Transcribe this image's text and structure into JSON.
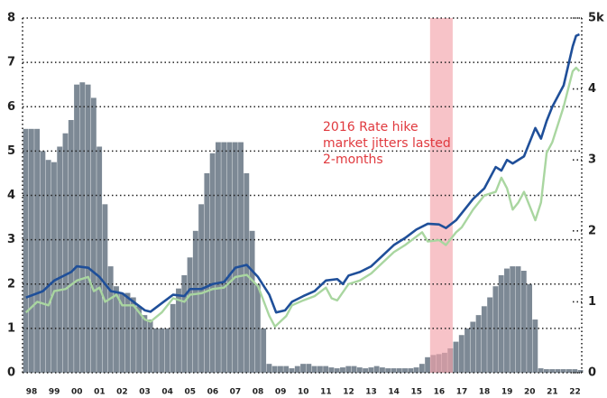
{
  "chart_data": {
    "type": "combo",
    "annotation": [
      "2016 Rate hike",
      "market jitters lasted",
      "2-months"
    ],
    "annotation_color": "#e0393e",
    "xlim": [
      1997.6,
      2022.3
    ],
    "xticks": [
      {
        "value": 1998,
        "label": "98"
      },
      {
        "value": 1999,
        "label": "99"
      },
      {
        "value": 2000,
        "label": "00"
      },
      {
        "value": 2001,
        "label": "01"
      },
      {
        "value": 2002,
        "label": "02"
      },
      {
        "value": 2003,
        "label": "03"
      },
      {
        "value": 2004,
        "label": "04"
      },
      {
        "value": 2005,
        "label": "05"
      },
      {
        "value": 2006,
        "label": "06"
      },
      {
        "value": 2007,
        "label": "07"
      },
      {
        "value": 2008,
        "label": "08"
      },
      {
        "value": 2009,
        "label": "09"
      },
      {
        "value": 2010,
        "label": "10"
      },
      {
        "value": 2011,
        "label": "11"
      },
      {
        "value": 2012,
        "label": "12"
      },
      {
        "value": 2013,
        "label": "13"
      },
      {
        "value": 2014,
        "label": "14"
      },
      {
        "value": 2015,
        "label": "15"
      },
      {
        "value": 2016,
        "label": "16"
      },
      {
        "value": 2017,
        "label": "17"
      },
      {
        "value": 2018,
        "label": "18"
      },
      {
        "value": 2019,
        "label": "19"
      },
      {
        "value": 2020,
        "label": "20"
      },
      {
        "value": 2021,
        "label": "21"
      },
      {
        "value": 2022,
        "label": "22"
      }
    ],
    "ylim": [
      0,
      8
    ],
    "yticks": [
      0,
      1,
      2,
      3,
      4,
      5,
      6,
      7,
      8
    ],
    "y2lim": [
      0,
      5
    ],
    "y2ticks": [
      0,
      1,
      2,
      3,
      4,
      {
        "value": 5,
        "label": "5k"
      }
    ],
    "grid": true,
    "highlight": {
      "x": [
        2015.6,
        2016.6
      ],
      "color": "#f2a3aa"
    },
    "bars": {
      "color": "#7d8995",
      "width": 0.25,
      "x": [
        1997.75,
        1998,
        1998.25,
        1998.5,
        1998.75,
        1999,
        1999.25,
        1999.5,
        1999.75,
        2000,
        2000.25,
        2000.5,
        2000.75,
        2001,
        2001.25,
        2001.5,
        2001.75,
        2002,
        2002.25,
        2002.5,
        2002.75,
        2003,
        2003.25,
        2003.5,
        2003.75,
        2004,
        2004.25,
        2004.5,
        2004.75,
        2005,
        2005.25,
        2005.5,
        2005.75,
        2006,
        2006.25,
        2006.5,
        2006.75,
        2007,
        2007.25,
        2007.5,
        2007.75,
        2008,
        2008.25,
        2008.5,
        2008.75,
        2009,
        2009.25,
        2009.5,
        2009.75,
        2010,
        2010.25,
        2010.5,
        2010.75,
        2011,
        2011.25,
        2011.5,
        2011.75,
        2012,
        2012.25,
        2012.5,
        2012.75,
        2013,
        2013.25,
        2013.5,
        2013.75,
        2014,
        2014.25,
        2014.5,
        2014.75,
        2015,
        2015.25,
        2015.5,
        2015.75,
        2016,
        2016.25,
        2016.5,
        2016.75,
        2017,
        2017.25,
        2017.5,
        2017.75,
        2018,
        2018.25,
        2018.5,
        2018.75,
        2019,
        2019.25,
        2019.5,
        2019.75,
        2020,
        2020.25,
        2020.5,
        2020.75,
        2021,
        2021.25,
        2021.5,
        2021.75,
        2022,
        2022.25
      ],
      "values": [
        5.5,
        5.5,
        5.5,
        5.0,
        4.8,
        4.75,
        5.1,
        5.4,
        5.7,
        6.5,
        6.55,
        6.5,
        6.2,
        5.1,
        3.8,
        2.4,
        1.95,
        1.8,
        1.8,
        1.7,
        1.5,
        1.3,
        1.2,
        1.0,
        1.0,
        1.0,
        1.55,
        1.9,
        2.2,
        2.6,
        3.2,
        3.8,
        4.5,
        4.95,
        5.2,
        5.2,
        5.2,
        5.2,
        5.2,
        4.5,
        3.2,
        2.0,
        1.0,
        0.2,
        0.15,
        0.15,
        0.15,
        0.1,
        0.15,
        0.2,
        0.2,
        0.15,
        0.15,
        0.15,
        0.12,
        0.1,
        0.12,
        0.15,
        0.15,
        0.12,
        0.1,
        0.12,
        0.15,
        0.12,
        0.1,
        0.1,
        0.1,
        0.1,
        0.1,
        0.12,
        0.2,
        0.35,
        0.4,
        0.42,
        0.45,
        0.55,
        0.7,
        0.85,
        1.0,
        1.15,
        1.3,
        1.5,
        1.7,
        1.95,
        2.2,
        2.35,
        2.4,
        2.4,
        2.3,
        2.0,
        1.2,
        0.1,
        0.08,
        0.08,
        0.08,
        0.08,
        0.08,
        0.08,
        0.06
      ]
    },
    "lines": [
      {
        "color": "#1f4f99",
        "axis": "y2",
        "x": [
          1997.75,
          1998.5,
          1999,
          1999.75,
          2000,
          2000.5,
          2001,
          2001.5,
          2002,
          2002.5,
          2003,
          2003.25,
          2003.75,
          2004.25,
          2004.75,
          2005,
          2005.5,
          2006,
          2006.5,
          2007,
          2007.5,
          2008,
          2008.5,
          2008.8,
          2009.2,
          2009.5,
          2010,
          2010.5,
          2011,
          2011.5,
          2011.75,
          2012,
          2012.5,
          2013,
          2013.5,
          2014,
          2014.5,
          2015,
          2015.5,
          2016,
          2016.3,
          2016.75,
          2017,
          2017.5,
          2018,
          2018.5,
          2018.75,
          2019,
          2019.25,
          2019.75,
          2020.25,
          2020.5,
          2020.75,
          2021,
          2021.5,
          2021.9,
          2022.05,
          2022.2
        ],
        "values": [
          1.06,
          1.15,
          1.3,
          1.42,
          1.5,
          1.48,
          1.35,
          1.15,
          1.12,
          1.0,
          0.88,
          0.86,
          0.98,
          1.1,
          1.08,
          1.18,
          1.18,
          1.25,
          1.28,
          1.48,
          1.52,
          1.35,
          1.1,
          0.85,
          0.88,
          1.0,
          1.08,
          1.15,
          1.3,
          1.32,
          1.25,
          1.37,
          1.42,
          1.5,
          1.65,
          1.8,
          1.9,
          2.02,
          2.1,
          2.09,
          2.04,
          2.15,
          2.25,
          2.45,
          2.6,
          2.9,
          2.85,
          3.0,
          2.95,
          3.05,
          3.45,
          3.3,
          3.55,
          3.75,
          4.05,
          4.6,
          4.75,
          4.77
        ]
      },
      {
        "color": "#a9d6a0",
        "axis": "y2",
        "x": [
          1997.75,
          1998.25,
          1998.75,
          1999,
          1999.5,
          2000,
          2000.5,
          2000.75,
          2001,
          2001.25,
          2001.75,
          2002,
          2002.5,
          2003,
          2003.25,
          2003.75,
          2004.25,
          2004.75,
          2005,
          2005.5,
          2006,
          2006.5,
          2007,
          2007.5,
          2007.75,
          2008,
          2008.5,
          2008.75,
          2009.25,
          2009.5,
          2010,
          2010.5,
          2011,
          2011.25,
          2011.5,
          2012,
          2012.5,
          2013,
          2013.5,
          2014,
          2014.5,
          2015,
          2015.25,
          2015.5,
          2016,
          2016.3,
          2016.75,
          2017,
          2017.5,
          2018,
          2018.5,
          2018.75,
          2019,
          2019.25,
          2019.5,
          2019.75,
          2020.25,
          2020.5,
          2020.75,
          2021,
          2021.5,
          2021.9,
          2022.05,
          2022.2
        ],
        "values": [
          0.85,
          1.0,
          0.95,
          1.15,
          1.18,
          1.3,
          1.35,
          1.15,
          1.2,
          1.0,
          1.1,
          0.95,
          0.95,
          0.75,
          0.72,
          0.85,
          1.05,
          1.0,
          1.1,
          1.12,
          1.18,
          1.2,
          1.35,
          1.38,
          1.3,
          1.22,
          0.8,
          0.65,
          0.8,
          0.95,
          1.02,
          1.08,
          1.2,
          1.05,
          1.02,
          1.25,
          1.3,
          1.4,
          1.55,
          1.7,
          1.8,
          1.92,
          1.98,
          1.85,
          1.87,
          1.8,
          1.98,
          2.05,
          2.3,
          2.5,
          2.55,
          2.75,
          2.6,
          2.3,
          2.4,
          2.55,
          2.15,
          2.4,
          3.1,
          3.25,
          3.75,
          4.25,
          4.3,
          4.25
        ]
      }
    ]
  }
}
